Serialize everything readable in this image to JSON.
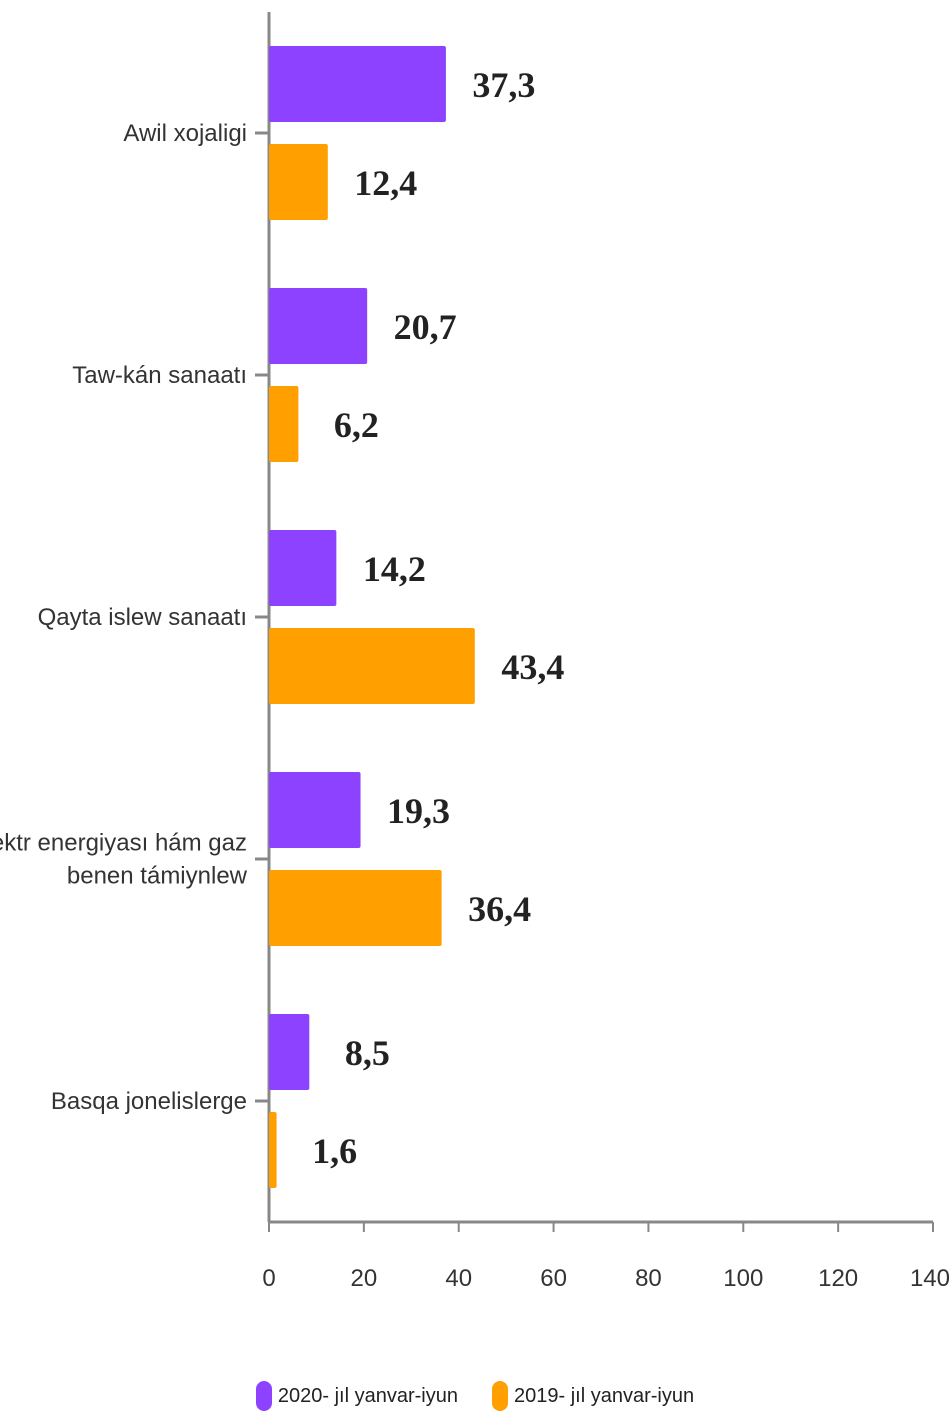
{
  "chart_data": {
    "type": "bar",
    "orientation": "horizontal",
    "categories": [
      [
        "Awil xojaligi"
      ],
      [
        "Taw-kán sanaatı"
      ],
      [
        "Qayta islew sanaatı"
      ],
      [
        "Elektr energiyası hám gaz",
        "benen támiynlew"
      ],
      [
        "Basqa jonelislerge"
      ]
    ],
    "series": [
      {
        "name": "2020- jıl yanvar-iyun",
        "color": "#8c42ff",
        "values": [
          37.3,
          20.7,
          14.2,
          19.3,
          8.5
        ],
        "labels": [
          "37,3",
          "20,7",
          "14,2",
          "19,3",
          "8,5"
        ]
      },
      {
        "name": "2019- jıl yanvar-iyun",
        "color": "#ffa000",
        "values": [
          12.4,
          6.2,
          43.4,
          36.4,
          1.6
        ],
        "labels": [
          "12,4",
          "6,2",
          "43,4",
          "36,4",
          "1,6"
        ]
      }
    ],
    "xlim": [
      0,
      140
    ],
    "xticks": [
      0,
      20,
      40,
      60,
      80,
      100,
      120,
      140
    ],
    "grid": false,
    "legend_position": "bottom-center",
    "title": "",
    "xlabel": "",
    "ylabel": ""
  }
}
